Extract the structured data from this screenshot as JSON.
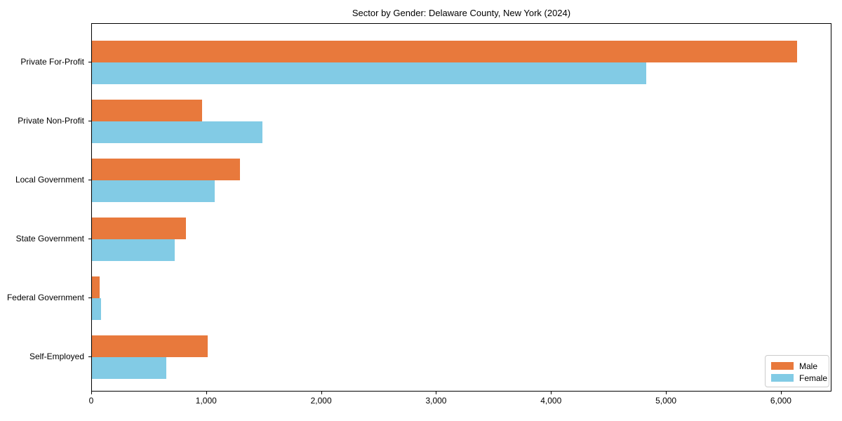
{
  "chart_data": {
    "type": "bar",
    "orientation": "horizontal",
    "title": "Sector by Gender: Delaware County, New York (2024)",
    "categories": [
      "Private For-Profit",
      "Private Non-Profit",
      "Local Government",
      "State Government",
      "Federal Government",
      "Self-Employed"
    ],
    "series": [
      {
        "name": "Male",
        "color": "#E8793C",
        "values": [
          6135,
          960,
          1290,
          820,
          65,
          1005
        ]
      },
      {
        "name": "Female",
        "color": "#82CBE5",
        "values": [
          4820,
          1485,
          1070,
          720,
          80,
          650
        ]
      }
    ],
    "xlabel": "",
    "ylabel": "",
    "xlim": [
      0,
      6440
    ],
    "x_ticks": [
      0,
      1000,
      2000,
      3000,
      4000,
      5000,
      6000
    ],
    "x_tick_labels": [
      "0",
      "1,000",
      "2,000",
      "3,000",
      "4,000",
      "5,000",
      "6,000"
    ],
    "grid": false,
    "legend": {
      "position": "lower right",
      "entries": [
        "Male",
        "Female"
      ]
    }
  }
}
